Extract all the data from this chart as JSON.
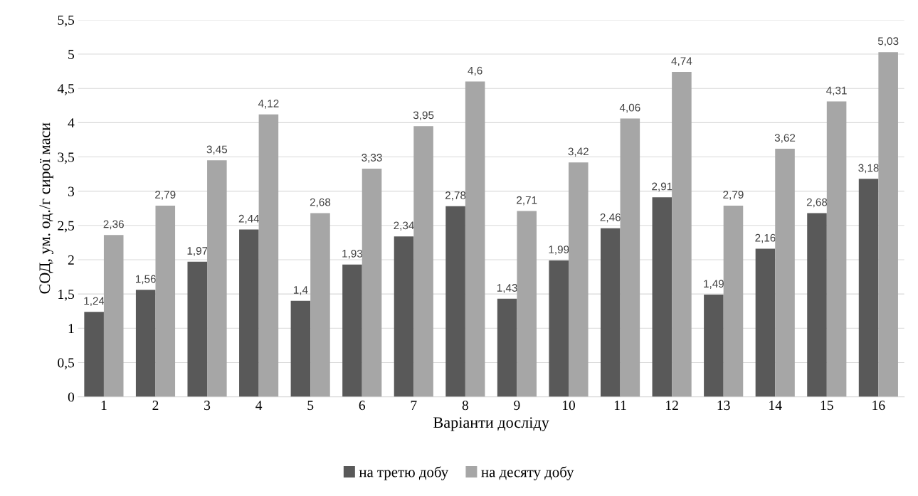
{
  "chart_data": {
    "type": "bar",
    "xlabel": "Варіанти досліду",
    "ylabel": "СОД, ум. од./г сирої маси",
    "categories": [
      "1",
      "2",
      "3",
      "4",
      "5",
      "6",
      "7",
      "8",
      "9",
      "10",
      "11",
      "12",
      "13",
      "14",
      "15",
      "16"
    ],
    "series": [
      {
        "name": "на третю добу",
        "color": "#595959",
        "values": [
          1.24,
          1.56,
          1.97,
          2.44,
          1.4,
          1.93,
          2.34,
          2.78,
          1.43,
          1.99,
          2.46,
          2.91,
          1.49,
          2.16,
          2.68,
          3.18
        ],
        "value_labels": [
          "1,24",
          "1,56",
          "1,97",
          "2,44",
          "1,4",
          "1,93",
          "2,34",
          "2,78",
          "1,43",
          "1,99",
          "2,46",
          "2,91",
          "1,49",
          "2,16",
          "2,68",
          "3,18"
        ]
      },
      {
        "name": "на десяту добу",
        "color": "#a6a6a6",
        "values": [
          2.36,
          2.79,
          3.45,
          4.12,
          2.68,
          3.33,
          3.95,
          4.6,
          2.71,
          3.42,
          4.06,
          4.74,
          2.79,
          3.62,
          4.31,
          5.03
        ],
        "value_labels": [
          "2,36",
          "2,79",
          "3,45",
          "4,12",
          "2,68",
          "3,33",
          "3,95",
          "4,6",
          "2,71",
          "3,42",
          "4,06",
          "4,74",
          "2,79",
          "3,62",
          "4,31",
          "5,03"
        ]
      }
    ],
    "ylim": [
      0,
      5.5
    ],
    "yticks": [
      0,
      {
        "value": 0.5,
        "label": "0,5"
      },
      1,
      {
        "value": 1.5,
        "label": "1,5"
      },
      2,
      {
        "value": 2.5,
        "label": "2,5"
      },
      3,
      {
        "value": 3.5,
        "label": "3,5"
      },
      4,
      {
        "value": 4.5,
        "label": "4,5"
      },
      5,
      {
        "value": 5.5,
        "label": "5,5"
      }
    ],
    "grid": "y",
    "legend": "bottom"
  }
}
